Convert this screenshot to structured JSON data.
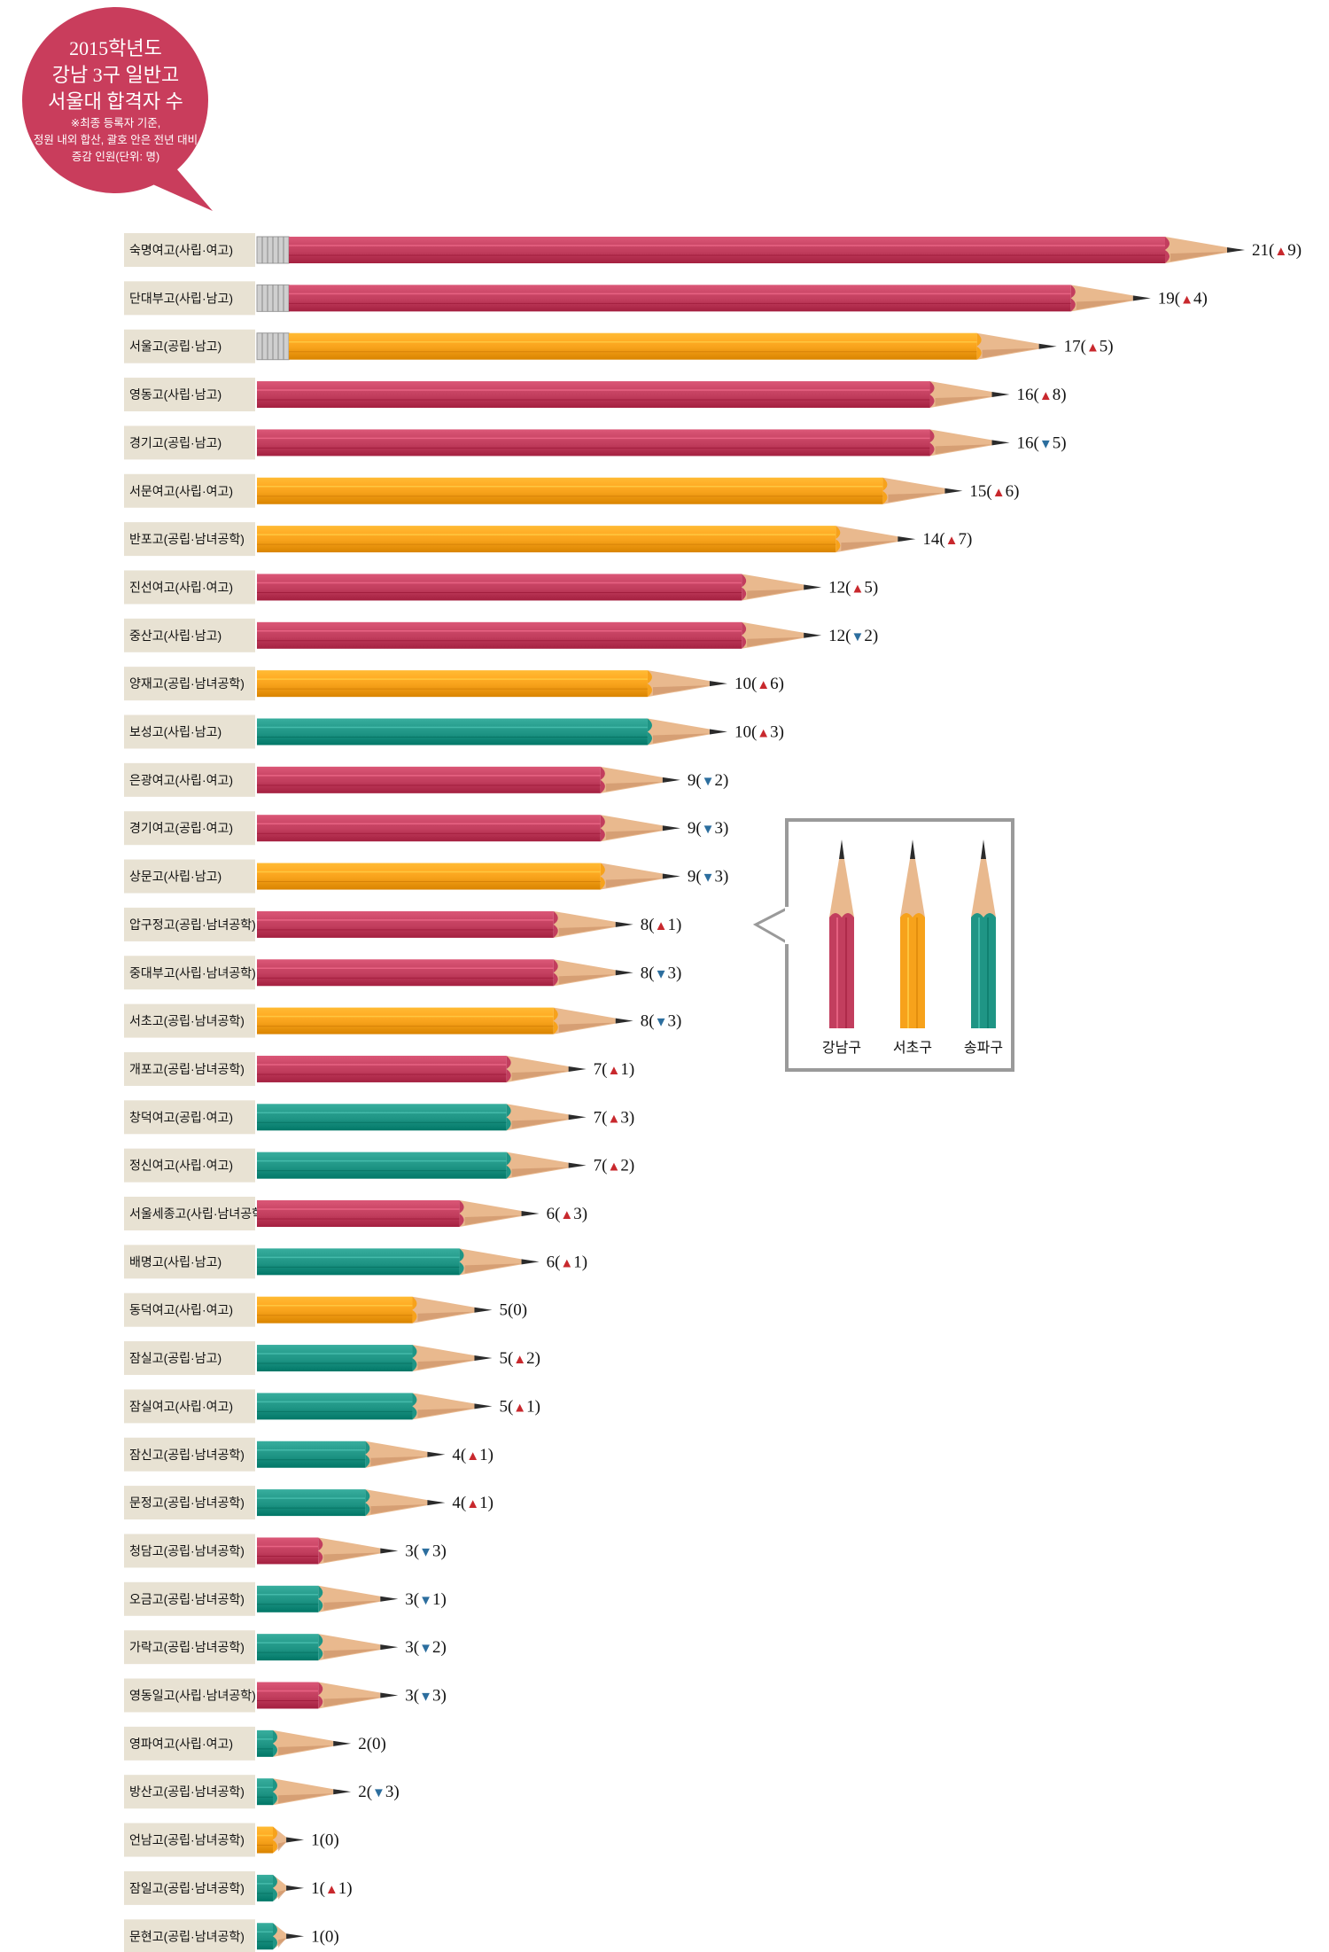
{
  "title": {
    "lines": [
      "2015학년도",
      "강남 3구 일반고",
      "서울대 합격자 수"
    ],
    "note_lines": [
      "※최종 등록자 기준,",
      "정원 내외 합산, 괄호 안은 전년 대비",
      "증감 인원(단위: 명)"
    ]
  },
  "colors": {
    "강남구": "#c23e5e",
    "서초구": "#f7a21b",
    "송파구": "#1f9585",
    "up_arrow": "#c8282d",
    "down_arrow": "#2c6e9e",
    "title_bubble": "#c93d5c",
    "label_bg": "#e8e2d3"
  },
  "legend": [
    {
      "label": "강남구",
      "color": "#c23e5e"
    },
    {
      "label": "서초구",
      "color": "#f7a21b"
    },
    {
      "label": "송파구",
      "color": "#1f9585"
    }
  ],
  "chart_data": {
    "type": "bar",
    "orientation": "horizontal",
    "unit": "명",
    "categories": [
      "숙명여고(사립·여고)",
      "단대부고(사립·남고)",
      "서울고(공립·남고)",
      "영동고(사립·남고)",
      "경기고(공립·남고)",
      "서문여고(사립·여고)",
      "반포고(공립·남녀공학)",
      "진선여고(사립·여고)",
      "중산고(사립·남고)",
      "양재고(공립·남녀공학)",
      "보성고(사립·남고)",
      "은광여고(사립·여고)",
      "경기여고(공립·여고)",
      "상문고(사립·남고)",
      "압구정고(공립·남녀공학)",
      "중대부고(사립·남녀공학)",
      "서초고(공립·남녀공학)",
      "개포고(공립·남녀공학)",
      "창덕여고(공립·여고)",
      "정신여고(사립·여고)",
      "서울세종고(사립·남녀공학)",
      "배명고(사립·남고)",
      "동덕여고(사립·여고)",
      "잠실고(공립·남고)",
      "잠실여고(사립·여고)",
      "잠신고(공립·남녀공학)",
      "문정고(공립·남녀공학)",
      "청담고(공립·남녀공학)",
      "오금고(공립·남녀공학)",
      "가락고(공립·남녀공학)",
      "영동일고(사립·남녀공학)",
      "영파여고(사립·여고)",
      "방산고(공립·남녀공학)",
      "언남고(공립·남녀공학)",
      "잠일고(공립·남녀공학)",
      "문현고(공립·남녀공학)"
    ],
    "values": [
      21,
      19,
      17,
      16,
      16,
      15,
      14,
      12,
      12,
      10,
      10,
      9,
      9,
      9,
      8,
      8,
      8,
      7,
      7,
      7,
      6,
      6,
      5,
      5,
      5,
      4,
      4,
      3,
      3,
      3,
      3,
      2,
      2,
      1,
      1,
      1
    ],
    "change": [
      9,
      4,
      5,
      8,
      -5,
      6,
      7,
      5,
      -2,
      6,
      3,
      -2,
      -3,
      -3,
      1,
      -3,
      -3,
      1,
      3,
      2,
      3,
      1,
      0,
      2,
      1,
      1,
      1,
      -3,
      -1,
      -2,
      -3,
      0,
      -3,
      0,
      1,
      0
    ],
    "district": [
      "강남구",
      "강남구",
      "서초구",
      "강남구",
      "강남구",
      "서초구",
      "서초구",
      "강남구",
      "강남구",
      "서초구",
      "송파구",
      "강남구",
      "강남구",
      "서초구",
      "강남구",
      "강남구",
      "서초구",
      "강남구",
      "송파구",
      "송파구",
      "강남구",
      "송파구",
      "서초구",
      "송파구",
      "송파구",
      "송파구",
      "송파구",
      "강남구",
      "송파구",
      "송파구",
      "강남구",
      "송파구",
      "송파구",
      "서초구",
      "송파구",
      "송파구"
    ],
    "value_labels": [
      "21(▲9)",
      "19(▲4)",
      "17(▲5)",
      "16(▲8)",
      "16(▼5)",
      "15(▲6)",
      "14(▲7)",
      "12(▲5)",
      "12(▼2)",
      "10(▲6)",
      "10(▲3)",
      "9(▼2)",
      "9(▼3)",
      "9(▼3)",
      "8(▲1)",
      "8(▼3)",
      "8(▼3)",
      "7(▲1)",
      "7(▲3)",
      "7(▲2)",
      "6(▲3)",
      "6(▲1)",
      "5(0)",
      "5(▲2)",
      "5(▲1)",
      "4(▲1)",
      "4(▲1)",
      "3(▼3)",
      "3(▼1)",
      "3(▼2)",
      "3(▼3)",
      "2(0)",
      "2(▼3)",
      "1(0)",
      "1(▲1)",
      "1(0)"
    ],
    "erasers": [
      "숙명여고(사립·여고)",
      "단대부고(사립·남고)",
      "서울고(공립·남고)"
    ]
  }
}
